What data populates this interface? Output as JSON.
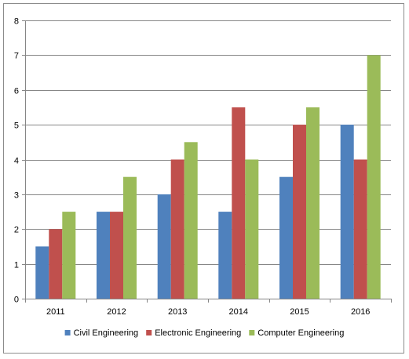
{
  "chart_data": {
    "type": "bar",
    "title": "",
    "xlabel": "",
    "ylabel": "",
    "categories": [
      "2011",
      "2012",
      "2013",
      "2014",
      "2015",
      "2016"
    ],
    "ylim": [
      0,
      8
    ],
    "yticks": [
      "0",
      "1",
      "2",
      "3",
      "4",
      "5",
      "6",
      "7",
      "8"
    ],
    "grid": true,
    "legend_position": "bottom",
    "series": [
      {
        "name": "Civil Engineering",
        "color": "#4f81bd",
        "values": [
          1.5,
          2.5,
          3,
          2.5,
          3.5,
          5
        ]
      },
      {
        "name": "Electronic Engineering",
        "color": "#c0504d",
        "values": [
          2,
          2.5,
          4,
          5.5,
          5,
          4
        ]
      },
      {
        "name": "Computer Engineering",
        "color": "#9bbb59",
        "values": [
          2.5,
          3.5,
          4.5,
          4,
          5.5,
          7
        ]
      }
    ]
  }
}
